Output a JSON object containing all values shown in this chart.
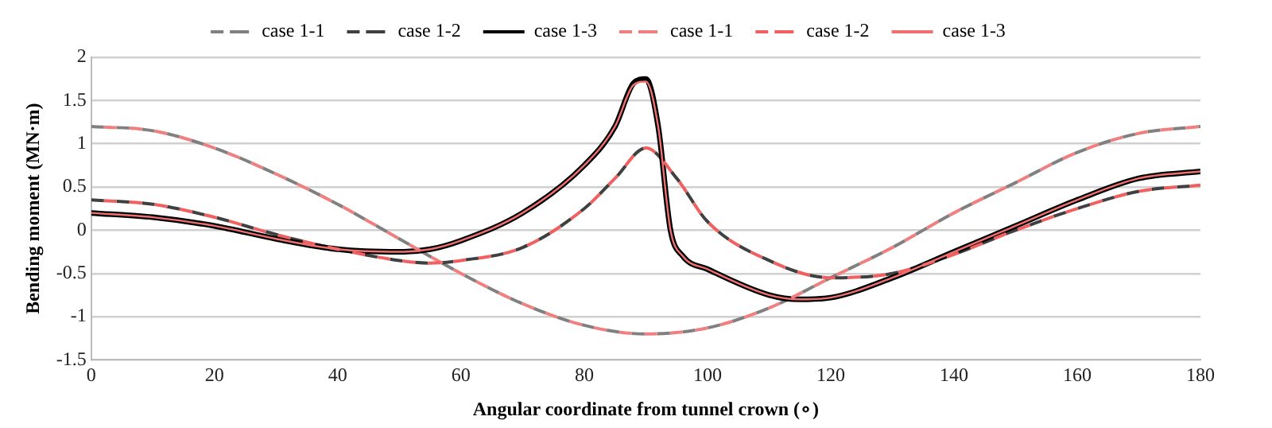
{
  "chart_data": {
    "type": "line",
    "xlabel": "Angular coordinate from tunnel crown (∘)",
    "ylabel": "Bending moment (MN·m)",
    "xlim": [
      0,
      180
    ],
    "xticks": [
      0,
      20,
      40,
      60,
      80,
      100,
      120,
      140,
      160,
      180
    ],
    "ylim": [
      -1.5,
      2
    ],
    "yticks": [
      -1.5,
      -1,
      -0.5,
      0,
      0.5,
      1,
      1.5,
      2
    ],
    "grid": "y",
    "legend": "top",
    "marker": "none",
    "series": [
      {
        "name": "case 1-1",
        "color": "#808080",
        "line_style": "dashed",
        "x": [
          0,
          10,
          20,
          30,
          40,
          50,
          60,
          70,
          80,
          90,
          100,
          110,
          120,
          130,
          140,
          150,
          160,
          170,
          180
        ],
        "values": [
          1.2,
          1.15,
          0.95,
          0.65,
          0.3,
          -0.1,
          -0.5,
          -0.85,
          -1.1,
          -1.2,
          -1.13,
          -0.9,
          -0.55,
          -0.2,
          0.2,
          0.55,
          0.9,
          1.12,
          1.2
        ]
      },
      {
        "name": "case 1-2",
        "color": "#404040",
        "line_style": "dashed",
        "x": [
          0,
          10,
          20,
          30,
          40,
          50,
          55,
          60,
          70,
          80,
          85,
          90,
          95,
          100,
          110,
          120,
          130,
          140,
          150,
          160,
          170,
          180
        ],
        "values": [
          0.35,
          0.3,
          0.15,
          -0.05,
          -0.22,
          -0.35,
          -0.38,
          -0.35,
          -0.2,
          0.25,
          0.6,
          0.95,
          0.6,
          0.1,
          -0.35,
          -0.55,
          -0.5,
          -0.28,
          0,
          0.25,
          0.45,
          0.52
        ]
      },
      {
        "name": "case 1-3",
        "color": "#000000",
        "line_style": "solid",
        "x": [
          0,
          10,
          20,
          30,
          40,
          50,
          55,
          60,
          70,
          80,
          85,
          88,
          90,
          92,
          94,
          96,
          100,
          110,
          115,
          120,
          130,
          140,
          150,
          160,
          170,
          180
        ],
        "values": [
          0.2,
          0.15,
          0.05,
          -0.1,
          -0.22,
          -0.25,
          -0.22,
          -0.12,
          0.2,
          0.75,
          1.2,
          1.7,
          1.75,
          1.2,
          0,
          -0.3,
          -0.45,
          -0.75,
          -0.8,
          -0.78,
          -0.55,
          -0.25,
          0.05,
          0.35,
          0.6,
          0.68
        ]
      },
      {
        "name": "case 1-1",
        "color": "#f08080",
        "line_style": "dashed",
        "x": [
          0,
          10,
          20,
          30,
          40,
          50,
          60,
          70,
          80,
          90,
          100,
          110,
          120,
          130,
          140,
          150,
          160,
          170,
          180
        ],
        "values": [
          1.2,
          1.15,
          0.95,
          0.65,
          0.3,
          -0.1,
          -0.5,
          -0.85,
          -1.1,
          -1.2,
          -1.13,
          -0.9,
          -0.55,
          -0.2,
          0.2,
          0.55,
          0.9,
          1.12,
          1.2
        ]
      },
      {
        "name": "case 1-2",
        "color": "#f06060",
        "line_style": "dashed",
        "x": [
          0,
          10,
          20,
          30,
          40,
          50,
          55,
          60,
          70,
          80,
          85,
          90,
          95,
          100,
          110,
          120,
          130,
          140,
          150,
          160,
          170,
          180
        ],
        "values": [
          0.35,
          0.3,
          0.15,
          -0.05,
          -0.22,
          -0.35,
          -0.38,
          -0.35,
          -0.2,
          0.25,
          0.6,
          0.95,
          0.6,
          0.1,
          -0.35,
          -0.55,
          -0.5,
          -0.28,
          0,
          0.25,
          0.45,
          0.52
        ]
      },
      {
        "name": "case 1-3",
        "color": "#f07070",
        "line_style": "solid",
        "x": [
          0,
          10,
          20,
          30,
          40,
          50,
          55,
          60,
          70,
          80,
          85,
          88,
          90,
          92,
          94,
          96,
          100,
          110,
          115,
          120,
          130,
          140,
          150,
          160,
          170,
          180
        ],
        "values": [
          0.2,
          0.15,
          0.05,
          -0.1,
          -0.22,
          -0.25,
          -0.22,
          -0.12,
          0.2,
          0.75,
          1.2,
          1.68,
          1.72,
          1.2,
          0,
          -0.3,
          -0.45,
          -0.75,
          -0.8,
          -0.78,
          -0.55,
          -0.25,
          0.05,
          0.35,
          0.6,
          0.68
        ]
      }
    ]
  }
}
